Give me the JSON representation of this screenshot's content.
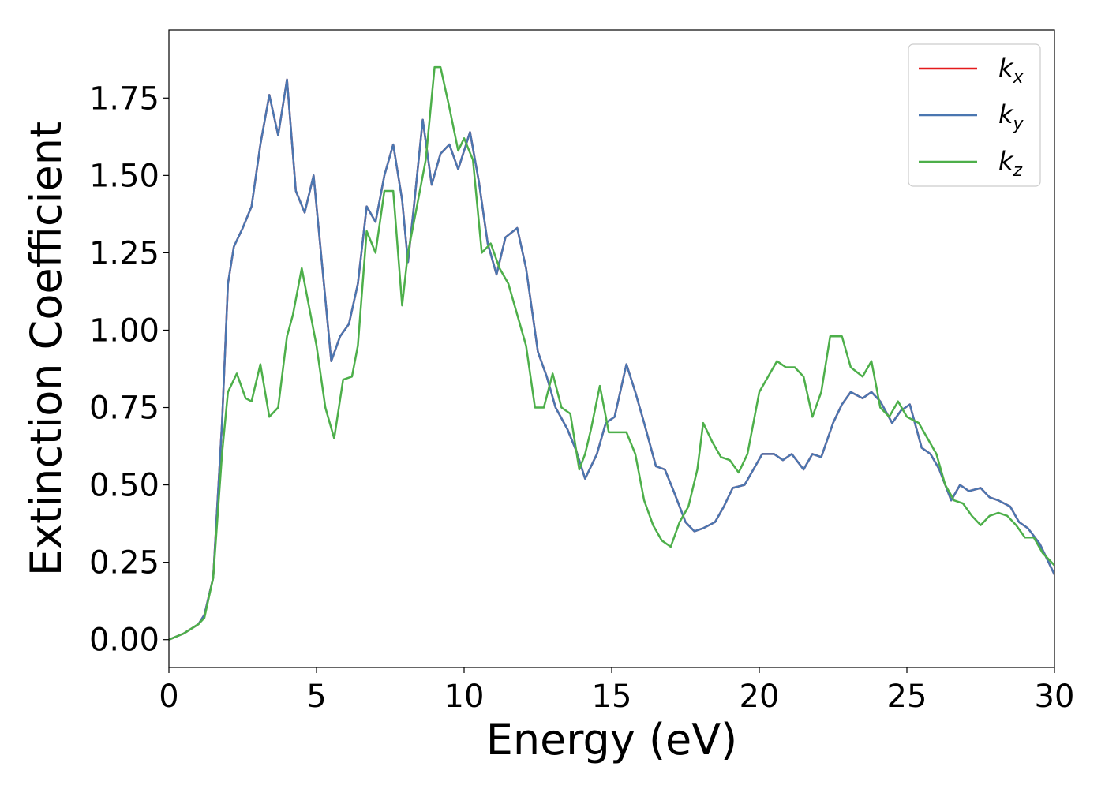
{
  "chart_data": {
    "type": "line",
    "title": "",
    "xlabel": "Energy (eV)",
    "ylabel": "Extinction Coefficient",
    "xlim": [
      0,
      30
    ],
    "ylim": [
      -0.09,
      1.97
    ],
    "xticks": [
      "0",
      "5",
      "10",
      "15",
      "20",
      "25",
      "30"
    ],
    "yticks": [
      "0.00",
      "0.25",
      "0.50",
      "0.75",
      "1.00",
      "1.25",
      "1.50",
      "1.75"
    ],
    "grid": false,
    "legend_position": "top-right",
    "series": [
      {
        "name": "k_x",
        "legend_base": "k",
        "legend_sub": "x",
        "color": "#e41a1c",
        "x": [
          0,
          0.5,
          1,
          1.2,
          1.5,
          1.8,
          2.0,
          2.2,
          2.5,
          2.8,
          3.1,
          3.4,
          3.7,
          4.0,
          4.3,
          4.6,
          4.9,
          5.2,
          5.5,
          5.8,
          6.1,
          6.4,
          6.7,
          7.0,
          7.3,
          7.6,
          7.9,
          8.1,
          8.3,
          8.6,
          8.9,
          9.2,
          9.5,
          9.8,
          10.2,
          10.5,
          10.8,
          11.1,
          11.4,
          11.8,
          12.1,
          12.5,
          12.8,
          13.1,
          13.5,
          13.8,
          14.1,
          14.5,
          14.8,
          15.1,
          15.5,
          15.8,
          16.1,
          16.5,
          16.8,
          17.1,
          17.5,
          17.8,
          18.1,
          18.5,
          18.8,
          19.1,
          19.5,
          19.8,
          20.1,
          20.5,
          20.8,
          21.1,
          21.5,
          21.8,
          22.1,
          22.5,
          22.8,
          23.1,
          23.5,
          23.8,
          24.1,
          24.5,
          24.8,
          25.1,
          25.5,
          25.8,
          26.1,
          26.5,
          26.8,
          27.1,
          27.5,
          27.8,
          28.1,
          28.5,
          28.8,
          29.1,
          29.5,
          30
        ],
        "y": [
          0.0,
          0.02,
          0.05,
          0.08,
          0.2,
          0.7,
          1.15,
          1.27,
          1.33,
          1.4,
          1.6,
          1.76,
          1.63,
          1.81,
          1.45,
          1.38,
          1.5,
          1.2,
          0.9,
          0.98,
          1.02,
          1.15,
          1.4,
          1.35,
          1.5,
          1.6,
          1.42,
          1.22,
          1.4,
          1.68,
          1.47,
          1.57,
          1.6,
          1.52,
          1.64,
          1.48,
          1.28,
          1.18,
          1.3,
          1.33,
          1.2,
          0.93,
          0.85,
          0.75,
          0.68,
          0.61,
          0.52,
          0.6,
          0.7,
          0.72,
          0.89,
          0.8,
          0.7,
          0.56,
          0.55,
          0.48,
          0.38,
          0.35,
          0.36,
          0.38,
          0.43,
          0.49,
          0.5,
          0.55,
          0.6,
          0.6,
          0.58,
          0.6,
          0.55,
          0.6,
          0.59,
          0.7,
          0.76,
          0.8,
          0.78,
          0.8,
          0.77,
          0.7,
          0.74,
          0.76,
          0.62,
          0.6,
          0.55,
          0.45,
          0.5,
          0.48,
          0.49,
          0.46,
          0.45,
          0.43,
          0.38,
          0.36,
          0.31,
          0.21
        ]
      },
      {
        "name": "k_y",
        "legend_base": "k",
        "legend_sub": "y",
        "color": "#4a76b0",
        "x": [
          0,
          0.5,
          1,
          1.2,
          1.5,
          1.8,
          2.0,
          2.2,
          2.5,
          2.8,
          3.1,
          3.4,
          3.7,
          4.0,
          4.3,
          4.6,
          4.9,
          5.2,
          5.5,
          5.8,
          6.1,
          6.4,
          6.7,
          7.0,
          7.3,
          7.6,
          7.9,
          8.1,
          8.3,
          8.6,
          8.9,
          9.2,
          9.5,
          9.8,
          10.2,
          10.5,
          10.8,
          11.1,
          11.4,
          11.8,
          12.1,
          12.5,
          12.8,
          13.1,
          13.5,
          13.8,
          14.1,
          14.5,
          14.8,
          15.1,
          15.5,
          15.8,
          16.1,
          16.5,
          16.8,
          17.1,
          17.5,
          17.8,
          18.1,
          18.5,
          18.8,
          19.1,
          19.5,
          19.8,
          20.1,
          20.5,
          20.8,
          21.1,
          21.5,
          21.8,
          22.1,
          22.5,
          22.8,
          23.1,
          23.5,
          23.8,
          24.1,
          24.5,
          24.8,
          25.1,
          25.5,
          25.8,
          26.1,
          26.5,
          26.8,
          27.1,
          27.5,
          27.8,
          28.1,
          28.5,
          28.8,
          29.1,
          29.5,
          30
        ],
        "y": [
          0.0,
          0.02,
          0.05,
          0.08,
          0.2,
          0.7,
          1.15,
          1.27,
          1.33,
          1.4,
          1.6,
          1.76,
          1.63,
          1.81,
          1.45,
          1.38,
          1.5,
          1.2,
          0.9,
          0.98,
          1.02,
          1.15,
          1.4,
          1.35,
          1.5,
          1.6,
          1.42,
          1.22,
          1.4,
          1.68,
          1.47,
          1.57,
          1.6,
          1.52,
          1.64,
          1.48,
          1.28,
          1.18,
          1.3,
          1.33,
          1.2,
          0.93,
          0.85,
          0.75,
          0.68,
          0.61,
          0.52,
          0.6,
          0.7,
          0.72,
          0.89,
          0.8,
          0.7,
          0.56,
          0.55,
          0.48,
          0.38,
          0.35,
          0.36,
          0.38,
          0.43,
          0.49,
          0.5,
          0.55,
          0.6,
          0.6,
          0.58,
          0.6,
          0.55,
          0.6,
          0.59,
          0.7,
          0.76,
          0.8,
          0.78,
          0.8,
          0.77,
          0.7,
          0.74,
          0.76,
          0.62,
          0.6,
          0.55,
          0.45,
          0.5,
          0.48,
          0.49,
          0.46,
          0.45,
          0.43,
          0.38,
          0.36,
          0.31,
          0.21
        ]
      },
      {
        "name": "k_z",
        "legend_base": "k",
        "legend_sub": "z",
        "color": "#4daf4a",
        "x": [
          0,
          0.5,
          1,
          1.2,
          1.5,
          1.8,
          2.0,
          2.3,
          2.6,
          2.8,
          3.1,
          3.4,
          3.7,
          4.0,
          4.2,
          4.5,
          4.8,
          5.0,
          5.3,
          5.6,
          5.9,
          6.2,
          6.4,
          6.7,
          7.0,
          7.3,
          7.6,
          7.9,
          8.1,
          8.4,
          8.7,
          9.0,
          9.2,
          9.5,
          9.8,
          10.0,
          10.3,
          10.6,
          10.9,
          11.2,
          11.5,
          11.8,
          12.1,
          12.4,
          12.7,
          13.0,
          13.3,
          13.6,
          13.9,
          14.1,
          14.3,
          14.6,
          14.9,
          15.2,
          15.5,
          15.8,
          16.1,
          16.4,
          16.7,
          17.0,
          17.3,
          17.6,
          17.9,
          18.1,
          18.4,
          18.7,
          19.0,
          19.3,
          19.6,
          20.0,
          20.3,
          20.6,
          20.9,
          21.2,
          21.5,
          21.8,
          22.1,
          22.4,
          22.8,
          23.1,
          23.5,
          23.8,
          24.1,
          24.4,
          24.7,
          25.0,
          25.4,
          25.7,
          26.0,
          26.3,
          26.6,
          26.9,
          27.2,
          27.5,
          27.8,
          28.1,
          28.4,
          28.7,
          29.0,
          29.3,
          29.6,
          30
        ],
        "y": [
          0.0,
          0.02,
          0.05,
          0.07,
          0.2,
          0.6,
          0.8,
          0.86,
          0.78,
          0.77,
          0.89,
          0.72,
          0.75,
          0.98,
          1.05,
          1.2,
          1.05,
          0.95,
          0.75,
          0.65,
          0.84,
          0.85,
          0.95,
          1.32,
          1.25,
          1.45,
          1.45,
          1.08,
          1.25,
          1.4,
          1.55,
          1.85,
          1.85,
          1.72,
          1.58,
          1.62,
          1.55,
          1.25,
          1.28,
          1.2,
          1.15,
          1.05,
          0.95,
          0.75,
          0.75,
          0.86,
          0.75,
          0.73,
          0.55,
          0.6,
          0.68,
          0.82,
          0.67,
          0.67,
          0.67,
          0.6,
          0.45,
          0.37,
          0.32,
          0.3,
          0.38,
          0.43,
          0.55,
          0.7,
          0.64,
          0.59,
          0.58,
          0.54,
          0.6,
          0.8,
          0.85,
          0.9,
          0.88,
          0.88,
          0.85,
          0.72,
          0.8,
          0.98,
          0.98,
          0.88,
          0.85,
          0.9,
          0.75,
          0.72,
          0.77,
          0.72,
          0.7,
          0.65,
          0.6,
          0.5,
          0.45,
          0.44,
          0.4,
          0.37,
          0.4,
          0.41,
          0.4,
          0.37,
          0.33,
          0.33,
          0.28,
          0.24
        ]
      }
    ]
  }
}
